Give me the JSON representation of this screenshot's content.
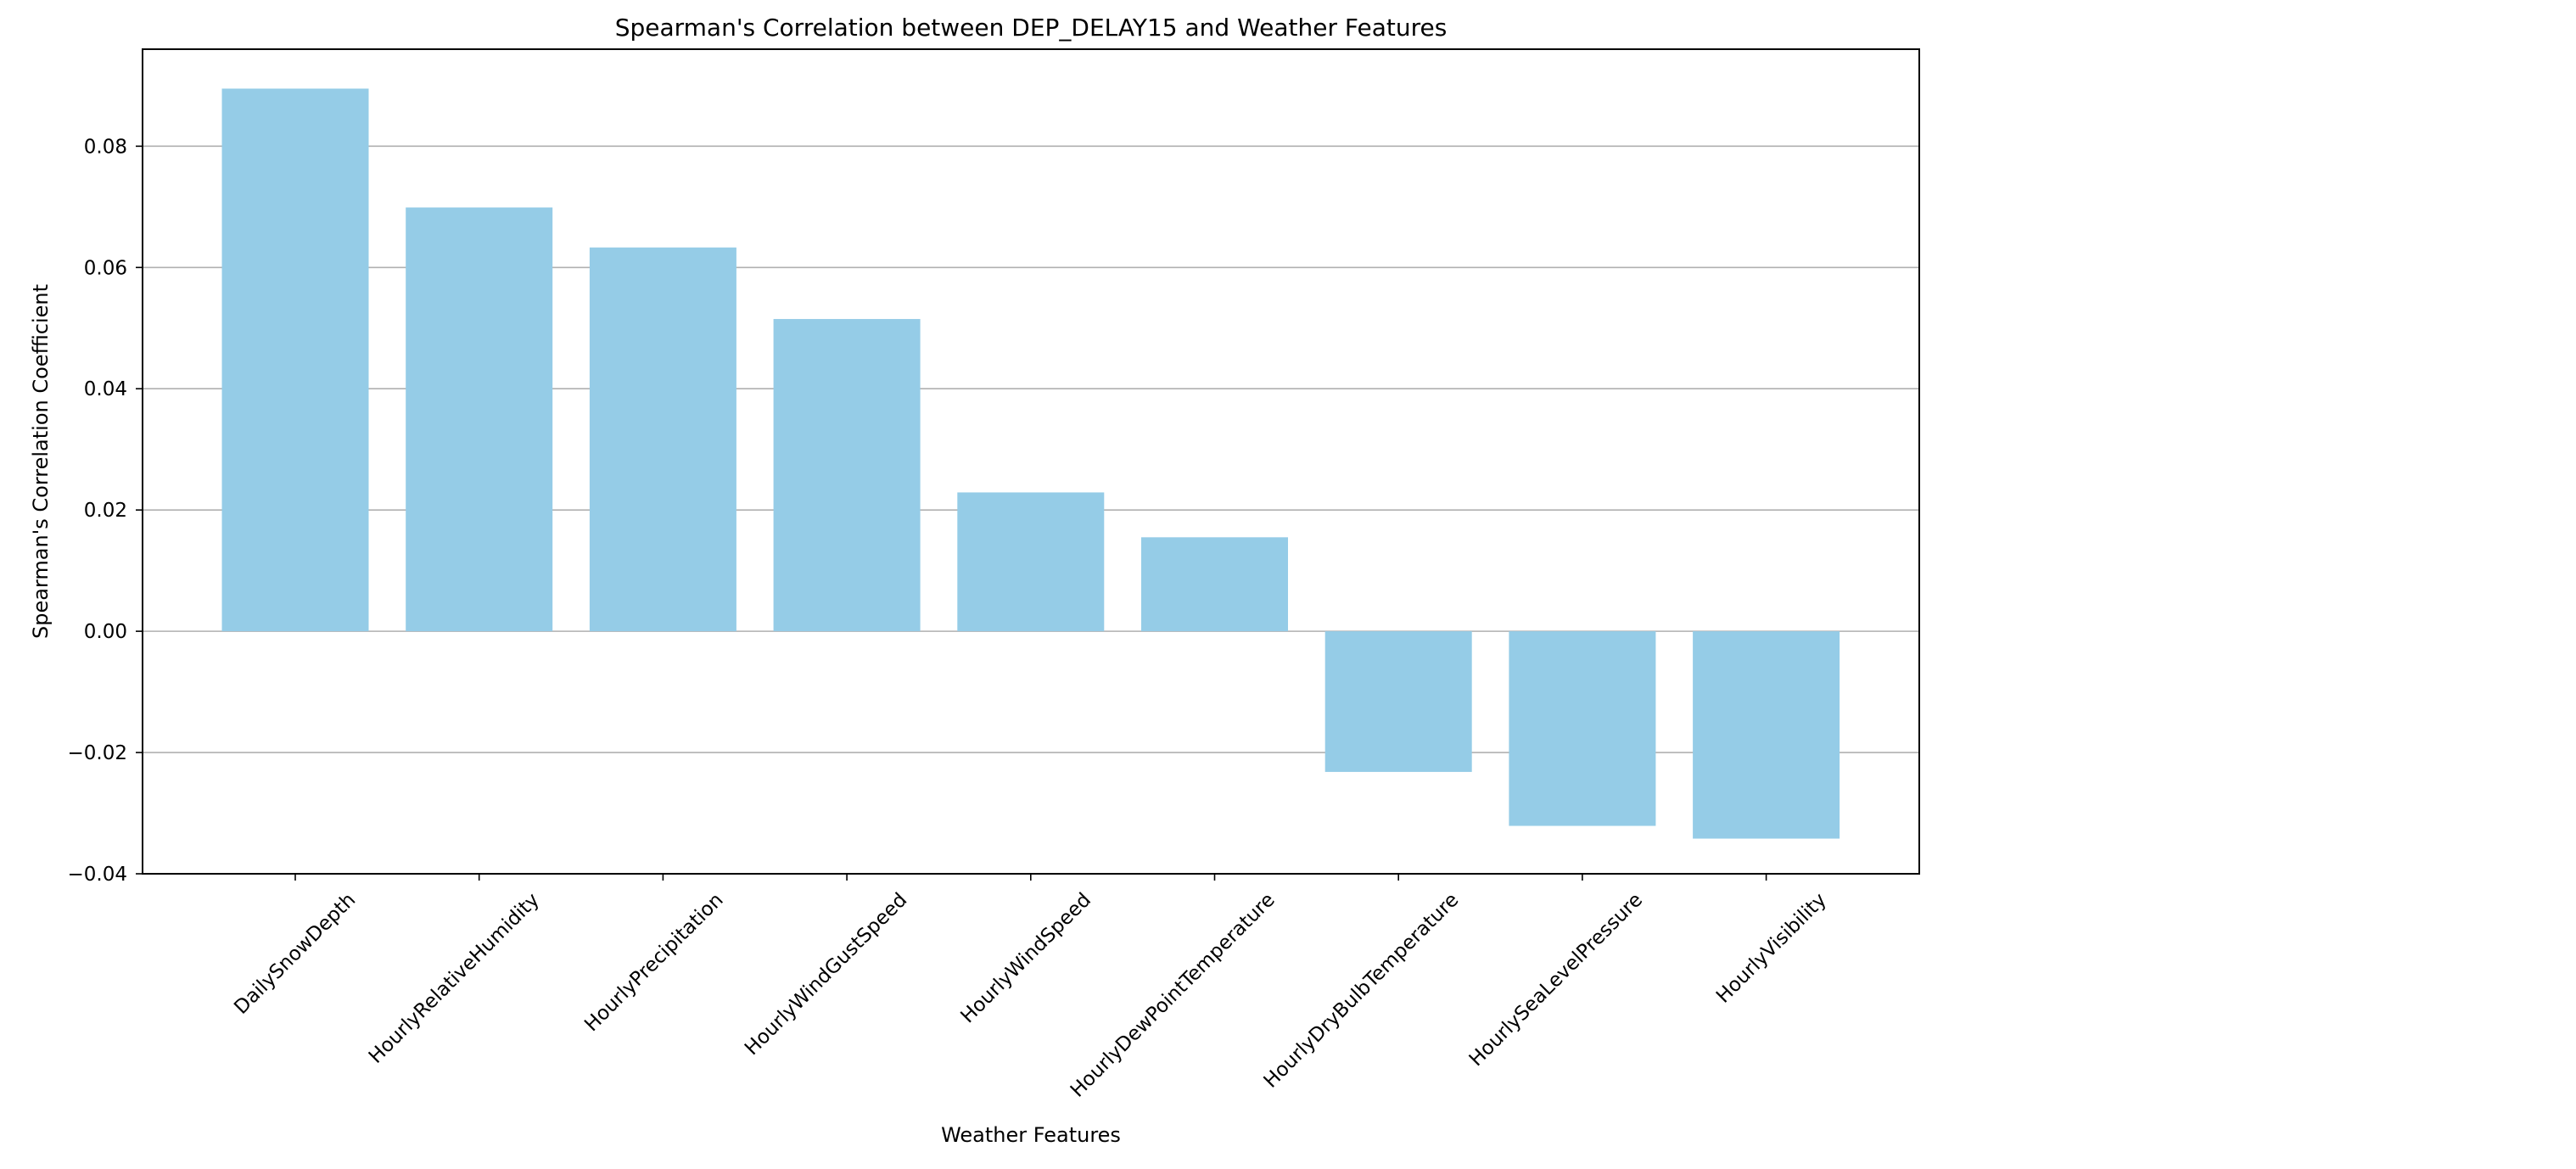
{
  "chart_data": {
    "type": "bar",
    "title": "Spearman's Correlation between DEP_DELAY15 and Weather Features",
    "xlabel": "Weather Features",
    "ylabel": "Spearman's Correlation Coefficient",
    "categories": [
      "DailySnowDepth",
      "HourlyRelativeHumidity",
      "HourlyPrecipitation",
      "HourlyWindGustSpeed",
      "HourlyWindSpeed",
      "HourlyDewPointTemperature",
      "HourlyDryBulbTemperature",
      "HourlySeaLevelPressure",
      "HourlyVisibility"
    ],
    "values": [
      0.0895,
      0.0699,
      0.0633,
      0.0515,
      0.0229,
      0.0155,
      -0.0232,
      -0.0321,
      -0.0342
    ],
    "ylim": [
      -0.04,
      0.096
    ],
    "yticks": [
      -0.04,
      -0.02,
      0.0,
      0.02,
      0.04,
      0.06,
      0.08
    ],
    "ytick_labels": [
      "−0.04",
      "−0.02",
      "0.00",
      "0.02",
      "0.04",
      "0.06",
      "0.08"
    ],
    "grid": "horizontal",
    "bar_color": "#95cce7",
    "grid_color": "#b0b0b0"
  }
}
